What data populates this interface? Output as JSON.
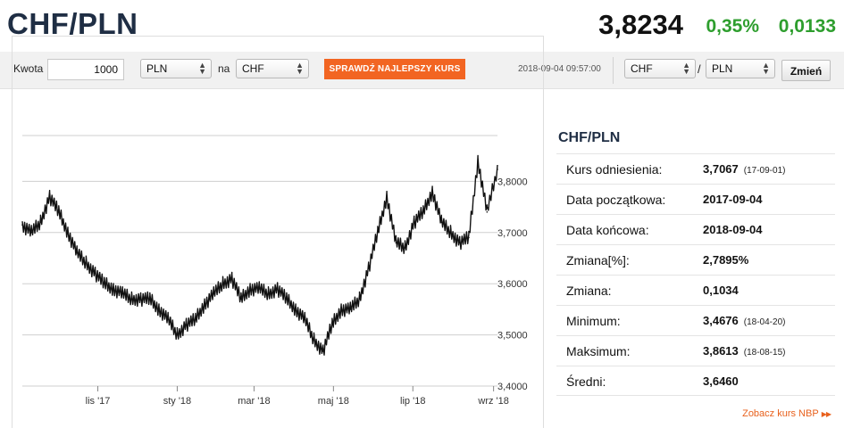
{
  "header": {
    "pair": "CHF/PLN",
    "rate": "3,8234",
    "change_pct": "0,35%",
    "change_abs": "0,0133"
  },
  "converter": {
    "amount_label": "Kwota",
    "amount_value": "1000",
    "from_currency": "PLN",
    "na_label": "na",
    "to_currency": "CHF",
    "check_button": "SPRAWDŹ NAJLEPSZY KURS",
    "timestamp": "2018-09-04 09:57:00",
    "pair_from": "CHF",
    "pair_slash": "/",
    "pair_to": "PLN",
    "change_button": "Zmień"
  },
  "stats": {
    "title": "CHF/PLN",
    "rows": [
      {
        "label": "Kurs odniesienia:",
        "value": "3,7067",
        "date": "(17-09-01)"
      },
      {
        "label": "Data początkowa:",
        "value": "2017-09-04",
        "date": ""
      },
      {
        "label": "Data końcowa:",
        "value": "2018-09-04",
        "date": ""
      },
      {
        "label": "Zmiana[%]:",
        "value": "2,7895%",
        "date": ""
      },
      {
        "label": "Zmiana:",
        "value": "0,1034",
        "date": ""
      },
      {
        "label": "Minimum:",
        "value": "3,4676",
        "date": "(18-04-20)"
      },
      {
        "label": "Maksimum:",
        "value": "3,8613",
        "date": "(18-08-15)"
      },
      {
        "label": "Średni:",
        "value": "3,6460",
        "date": ""
      }
    ],
    "nbp_link": "Zobacz kurs NBP",
    "nbp_icon": "double-triangle-right-icon"
  },
  "chart_data": {
    "type": "line",
    "title": "",
    "xlabel": "",
    "ylabel": "",
    "ylim": [
      3.4,
      3.9
    ],
    "yticks": [
      "3,4000",
      "3,5000",
      "3,6000",
      "3,7000",
      "3,8000"
    ],
    "xticks": [
      "lis '17",
      "sty '18",
      "mar '18",
      "maj '18",
      "lip '18",
      "wrz '18"
    ],
    "grid": true,
    "line_color": "#111111",
    "series": [
      {
        "name": "",
        "x": [
          "2017-09-04",
          "2017-09-11",
          "2017-09-18",
          "2017-09-25",
          "2017-10-02",
          "2017-10-09",
          "2017-10-16",
          "2017-10-23",
          "2017-10-30",
          "2017-11-06",
          "2017-11-13",
          "2017-11-20",
          "2017-11-27",
          "2017-12-04",
          "2017-12-11",
          "2017-12-18",
          "2017-12-25",
          "2018-01-01",
          "2018-01-08",
          "2018-01-15",
          "2018-01-22",
          "2018-01-29",
          "2018-02-05",
          "2018-02-12",
          "2018-02-19",
          "2018-02-26",
          "2018-03-05",
          "2018-03-12",
          "2018-03-19",
          "2018-03-26",
          "2018-04-02",
          "2018-04-09",
          "2018-04-16",
          "2018-04-23",
          "2018-04-30",
          "2018-05-07",
          "2018-05-14",
          "2018-05-21",
          "2018-05-28",
          "2018-06-04",
          "2018-06-11",
          "2018-06-18",
          "2018-06-25",
          "2018-07-02",
          "2018-07-09",
          "2018-07-16",
          "2018-07-23",
          "2018-07-30",
          "2018-08-06",
          "2018-08-13",
          "2018-08-20",
          "2018-08-27",
          "2018-09-04"
        ],
        "y": [
          3.715,
          3.7,
          3.72,
          3.77,
          3.74,
          3.7,
          3.66,
          3.64,
          3.62,
          3.6,
          3.59,
          3.58,
          3.57,
          3.57,
          3.57,
          3.55,
          3.53,
          3.5,
          3.52,
          3.53,
          3.56,
          3.58,
          3.6,
          3.61,
          3.57,
          3.59,
          3.59,
          3.58,
          3.59,
          3.57,
          3.55,
          3.53,
          3.49,
          3.468,
          3.52,
          3.55,
          3.55,
          3.57,
          3.63,
          3.7,
          3.77,
          3.68,
          3.67,
          3.72,
          3.74,
          3.78,
          3.72,
          3.7,
          3.68,
          3.69,
          3.84,
          3.74,
          3.8234
        ]
      }
    ]
  }
}
